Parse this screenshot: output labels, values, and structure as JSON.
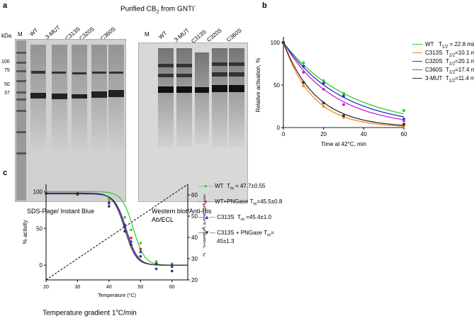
{
  "panel_a": {
    "letter": "a",
    "title_main": "Purified CB",
    "title_sub": "2",
    "title_mid": " from GNTI",
    "title_sup": "-",
    "kda_label": "kDa",
    "markers": [
      "100",
      "75",
      "50",
      "37"
    ],
    "lane_marker": "M",
    "lanes": [
      "WT",
      "3-MUT",
      "C313S",
      "C320S",
      "C360S"
    ],
    "gel1_caption": "SDS-Page/ Instant Blue",
    "gel2_caption_line1": "Western blot/Anti-His",
    "gel2_caption_line2": "Ab/ECL"
  },
  "panel_b": {
    "letter": "b",
    "legend": [
      {
        "label": "WT",
        "t_label": "T",
        "t_sub": "1/2",
        "t_val": " = 22.8 min",
        "color": "#2ecc2e"
      },
      {
        "label": "C313S",
        "t_label": "T",
        "t_sub": "1/2",
        "t_val": "=10.1 min",
        "color": "#f28c1c"
      },
      {
        "label": "C320S",
        "t_label": "T",
        "t_sub": "1/2",
        "t_val": "=20.1 min",
        "color": "#2233cc"
      },
      {
        "label": "C360S",
        "t_label": "T",
        "t_sub": "1/2",
        "t_val": "=17.4 min",
        "color": "#cc22cc"
      },
      {
        "label": "3-MUT",
        "t_label": "T",
        "t_sub": "1/2",
        "t_val": "=11.4 min",
        "color": "#333333"
      }
    ]
  },
  "panel_c": {
    "letter": "c",
    "legend": [
      {
        "label": "WT",
        "tm": "T",
        "tm_sub": "m",
        "val": " = 47.7±0.55",
        "color": "#2ecc2e",
        "marker": "circle"
      },
      {
        "label": "WT+PNGase",
        "tm": "T",
        "tm_sub": "m",
        "val": "=45.5±0.8",
        "color": "#e0201e",
        "marker": "circle"
      },
      {
        "label": "C313S",
        "tm": "T",
        "tm_sub": "m",
        "val": " =45.4±1.0",
        "color": "#2233cc",
        "marker": "triangle"
      },
      {
        "label": "C313S + PNGase",
        "tm": "T",
        "tm_sub": "m",
        "val": "=",
        "val2": "45±1.3",
        "color": "#333333",
        "marker": "triangle"
      }
    ],
    "footer_prefix": "Temperature gradient 1",
    "footer_sup": "o",
    "footer_suffix": "C/min"
  },
  "chart_data": [
    {
      "type": "line",
      "panel": "b",
      "xlabel": "Time at 42°C, min",
      "ylabel": "Relative activation, %",
      "xlim": [
        0,
        60
      ],
      "ylim": [
        0,
        100
      ],
      "x_ticks": [
        "0",
        "20",
        "40",
        "60"
      ],
      "y_ticks": [
        "0",
        "50",
        "100"
      ],
      "x": [
        0,
        10,
        20,
        30,
        60
      ],
      "series": [
        {
          "name": "WT",
          "color": "#2ecc2e",
          "values": [
            100,
            76,
            55,
            40,
            20
          ],
          "fit_khalf": 22.8
        },
        {
          "name": "C313S",
          "color": "#f28c1c",
          "values": [
            100,
            49,
            25,
            12,
            2
          ],
          "fit_khalf": 10.1
        },
        {
          "name": "C320S",
          "color": "#2233cc",
          "values": [
            100,
            72,
            52,
            37,
            10
          ],
          "fit_khalf": 20.1
        },
        {
          "name": "C360S",
          "color": "#cc22cc",
          "values": [
            100,
            65,
            45,
            27,
            8
          ],
          "fit_khalf": 17.4
        },
        {
          "name": "3-MUT",
          "color": "#333333",
          "values": [
            100,
            53,
            29,
            14,
            4
          ],
          "fit_khalf": 11.4
        }
      ]
    },
    {
      "type": "line",
      "panel": "c",
      "xlabel": "Temperature (°C)",
      "ylabel": "% activity",
      "y2label": "Temperature gradient, °C",
      "xlim": [
        20,
        65
      ],
      "ylim": [
        -20,
        110
      ],
      "y2lim": [
        20,
        65
      ],
      "x_ticks": [
        "20",
        "30",
        "40",
        "50",
        "60"
      ],
      "y_ticks": [
        "0",
        "50",
        "100"
      ],
      "y2_ticks": [
        "20",
        "30",
        "40",
        "50",
        "60"
      ],
      "x": [
        20,
        30,
        40,
        45,
        47,
        50,
        55,
        60
      ],
      "series": [
        {
          "name": "WT",
          "color": "#2ecc2e",
          "values": [
            100,
            98,
            90,
            65,
            48,
            30,
            5,
            2
          ],
          "tm": 47.7
        },
        {
          "name": "WT+PNGase",
          "color": "#e0201e",
          "values": [
            97,
            98,
            86,
            55,
            37,
            22,
            2,
            0
          ],
          "tm": 45.5
        },
        {
          "name": "C313S",
          "color": "#2233cc",
          "values": [
            97,
            96,
            84,
            52,
            32,
            18,
            -5,
            -2
          ],
          "tm": 45.4
        },
        {
          "name": "C313S + PNGase",
          "color": "#333333",
          "values": [
            98,
            97,
            80,
            46,
            28,
            12,
            2,
            -8
          ],
          "tm": 45.0
        }
      ]
    }
  ]
}
